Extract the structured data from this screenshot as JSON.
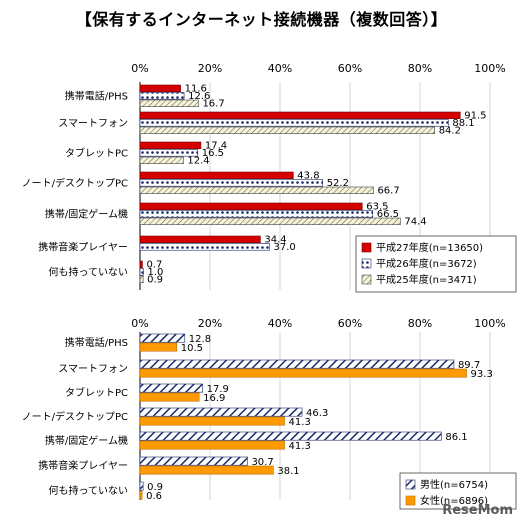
{
  "title": "【保有するインターネット接続機器（複数回答）】",
  "watermark": "ReseMom",
  "colors": {
    "red": "#d40000",
    "navy": "#1a2a66",
    "orange": "#ff9a00",
    "pale": "#f6f3d6"
  },
  "chart_data": [
    {
      "type": "bar",
      "orientation": "horizontal",
      "xlim": [
        0,
        100
      ],
      "ticks": [
        "0%",
        "20%",
        "40%",
        "60%",
        "80%",
        "100%"
      ],
      "categories": [
        "携帯電話/PHS",
        "スマートフォン",
        "タブレットPC",
        "ノート/デスクトップPC",
        "携帯/固定ゲーム機",
        "携帯音楽プレイヤー",
        "何も持っていない"
      ],
      "series": [
        {
          "name": "平成27年度(n=13650)",
          "pattern": "solid-red",
          "values": [
            11.6,
            91.5,
            17.4,
            43.8,
            63.5,
            34.4,
            0.7
          ]
        },
        {
          "name": "平成26年度(n=3672)",
          "pattern": "dots-navy",
          "values": [
            12.6,
            88.1,
            16.5,
            52.2,
            66.5,
            37.0,
            1.0
          ]
        },
        {
          "name": "平成25年度(n=3471)",
          "pattern": "stripes-pale",
          "values": [
            16.7,
            84.2,
            12.4,
            66.7,
            74.4,
            null,
            0.9
          ]
        }
      ],
      "labels": [
        [
          "11.6",
          "91.5",
          "17.4",
          "43.8",
          "63.5",
          "34.4",
          "0.7"
        ],
        [
          "12.6",
          "88.1",
          "16.5",
          "52.2",
          "66.5",
          "37.0",
          "1.0"
        ],
        [
          "16.7",
          "84.2",
          "12.4",
          "66.7",
          "74.4",
          "",
          "0.9"
        ]
      ],
      "legend_position": "bottom-right"
    },
    {
      "type": "bar",
      "orientation": "horizontal",
      "xlim": [
        0,
        100
      ],
      "ticks": [
        "0%",
        "20%",
        "40%",
        "60%",
        "80%",
        "100%"
      ],
      "categories": [
        "携帯電話/PHS",
        "スマートフォン",
        "タブレットPC",
        "ノート/デスクトップPC",
        "携帯/固定ゲーム機",
        "携帯音楽プレイヤー",
        "何も持っていない"
      ],
      "series": [
        {
          "name": "男性(n=6754)",
          "pattern": "stripes-navy",
          "values": [
            12.8,
            89.7,
            17.9,
            46.3,
            86.1,
            30.7,
            0.9
          ]
        },
        {
          "name": "女性(n=6896)",
          "pattern": "solid-orange",
          "values": [
            10.5,
            93.3,
            16.9,
            41.3,
            41.3,
            38.1,
            0.6
          ]
        }
      ],
      "labels": [
        [
          "12.8",
          "89.7",
          "17.9",
          "46.3",
          "86.1",
          "30.7",
          "0.9"
        ],
        [
          "10.5",
          "93.3",
          "16.9",
          "41.3",
          "41.3",
          "38.1",
          "0.6"
        ]
      ],
      "legend_position": "bottom-right"
    }
  ]
}
